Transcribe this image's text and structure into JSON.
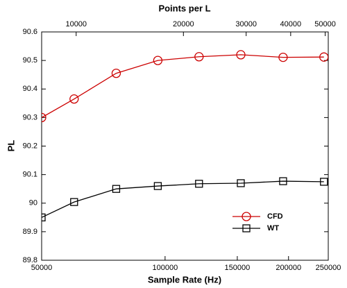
{
  "chart_data": {
    "type": "line",
    "title": "Points per L",
    "x_label": "Sample Rate (Hz)",
    "y_label": "PL",
    "x_scale": "log",
    "xlim": [
      50000,
      250000
    ],
    "xticks": [
      50000,
      100000,
      150000,
      200000,
      250000
    ],
    "x2_scale": "log",
    "x2lim": [
      8000,
      51000
    ],
    "x2ticks": [
      10000,
      20000,
      30000,
      40000,
      50000
    ],
    "ylim": [
      89.8,
      90.6
    ],
    "yticks": [
      89.8,
      89.9,
      90,
      90.1,
      90.2,
      90.3,
      90.4,
      90.5,
      90.6
    ],
    "legend_position": "lower right",
    "x": [
      50000,
      60000,
      76000,
      96000,
      121000,
      153000,
      194000,
      244000
    ],
    "series": [
      {
        "name": "CFD",
        "color": "#cc0000",
        "marker": "circle",
        "values": [
          90.3,
          90.365,
          90.455,
          90.5,
          90.513,
          90.52,
          90.511,
          90.512
        ]
      },
      {
        "name": "WT",
        "color": "#000000",
        "marker": "square",
        "values": [
          89.95,
          90.004,
          90.05,
          90.06,
          90.068,
          90.07,
          90.077,
          90.075
        ]
      }
    ]
  }
}
